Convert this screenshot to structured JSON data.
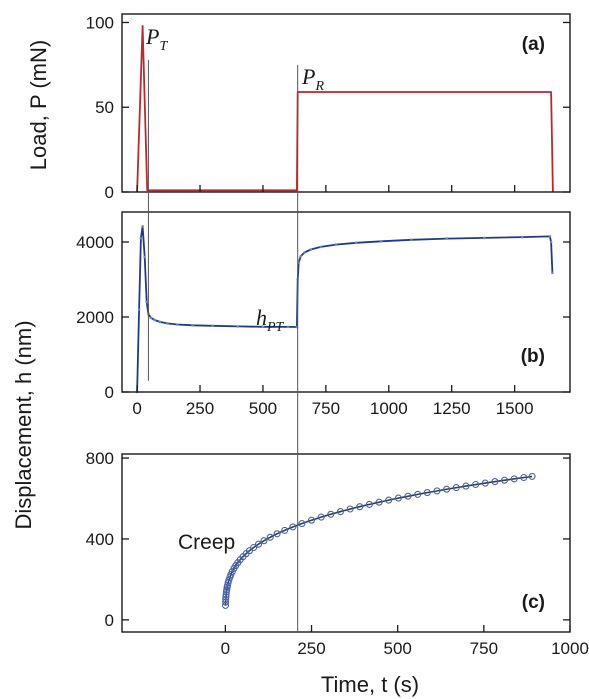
{
  "chart_data": [
    {
      "panel": "a",
      "type": "line",
      "tag": "(a)",
      "ylabel": "Load, P (mN)",
      "ylim": [
        0,
        105
      ],
      "yticks": [
        0,
        50,
        100
      ],
      "xlim": [
        -60,
        1720
      ],
      "colors": {
        "line": "#c0262d"
      },
      "series": [
        {
          "x": [
            0,
            22,
            40,
            45,
            635,
            638,
            1645,
            1652
          ],
          "y": [
            0,
            98,
            1,
            1,
            1,
            59,
            59,
            0
          ]
        }
      ],
      "annotations": [
        {
          "main": "P",
          "sub": "T"
        },
        {
          "main": "P",
          "sub": "R"
        }
      ]
    },
    {
      "panel": "b",
      "type": "line",
      "tag": "(b)",
      "ylabel": "Displacement, h (nm)",
      "ylim": [
        0,
        4800
      ],
      "yticks": [
        0,
        2000,
        4000
      ],
      "xlim": [
        -60,
        1720
      ],
      "xticks": [
        0,
        250,
        500,
        750,
        1000,
        1250,
        1500
      ],
      "colors": {
        "line": "#1e3a8a",
        "points": "#6b84c4"
      },
      "series": [
        {
          "x": [
            0,
            8,
            15,
            22,
            30,
            38,
            45,
            55,
            70,
            90,
            120,
            160,
            220,
            300,
            400,
            500,
            600,
            635,
            638,
            642,
            650,
            665,
            690,
            730,
            790,
            870,
            970,
            1090,
            1230,
            1380,
            1530,
            1640,
            1645,
            1650
          ],
          "y": [
            0,
            2200,
            4100,
            4420,
            3600,
            2400,
            2080,
            1980,
            1920,
            1870,
            1830,
            1800,
            1780,
            1765,
            1750,
            1740,
            1735,
            1733,
            3000,
            3450,
            3620,
            3720,
            3800,
            3870,
            3930,
            3980,
            4020,
            4060,
            4090,
            4110,
            4130,
            4150,
            4000,
            3180
          ]
        }
      ],
      "annotations": [
        {
          "main": "h",
          "sub": "PT"
        }
      ]
    },
    {
      "panel": "c",
      "type": "scatter",
      "tag": "(c)",
      "xlabel": "Time, t (s)",
      "ylim": [
        -60,
        820
      ],
      "yticks": [
        0,
        400,
        800
      ],
      "xlim": [
        -300,
        1000
      ],
      "xticks": [
        0,
        250,
        500,
        750,
        1000
      ],
      "colors": {
        "fit": "#2f3d50",
        "points": "#4a63a8"
      },
      "label": "Creep",
      "fit": {
        "type": "power",
        "a": 101,
        "b": 0.287,
        "x_start": 0.3,
        "x_end": 890
      },
      "points_x": [
        0.3,
        0.6,
        1,
        1.5,
        2,
        3,
        4,
        5,
        6,
        8,
        10,
        13,
        16,
        20,
        25,
        30,
        36,
        43,
        51,
        60,
        70,
        82,
        96,
        112,
        130,
        150,
        172,
        196,
        222,
        250,
        278,
        306,
        334,
        362,
        390,
        418,
        446,
        474,
        502,
        530,
        558,
        586,
        614,
        642,
        670,
        698,
        726,
        754,
        782,
        810,
        838,
        866,
        890
      ]
    }
  ]
}
